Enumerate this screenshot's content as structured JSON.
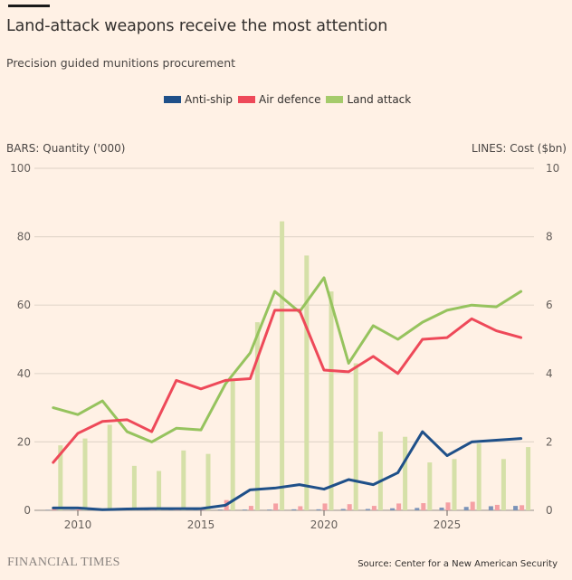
{
  "header": {
    "title": "Land-attack weapons receive the most attention",
    "subtitle": "Precision guided munitions procurement"
  },
  "legend": [
    {
      "label": "Anti-ship",
      "color": "#1f5089"
    },
    {
      "label": "Air defence",
      "color": "#ee4959"
    },
    {
      "label": "Land attack",
      "color": "#a5cb6b"
    }
  ],
  "footer": {
    "brand": "FINANCIAL TIMES",
    "source": "Source: Center for a New American Security"
  },
  "chart_data": {
    "type": "bar+line",
    "title": "Land-attack weapons receive the most attention",
    "subtitle": "Precision guided munitions procurement",
    "left_axis": {
      "label": "BARS: Quantity ('000)",
      "range": [
        0,
        100
      ],
      "ticks": [
        "0",
        "20",
        "40",
        "60",
        "80",
        "100"
      ]
    },
    "right_axis": {
      "label": "LINES: Cost ($bn)",
      "range": [
        0,
        10
      ],
      "ticks": [
        "0",
        "2",
        "4",
        "6",
        "8",
        "10"
      ]
    },
    "x_ticks": [
      "2010",
      "2015",
      "2020",
      "2025"
    ],
    "x": [
      2009,
      2010,
      2011,
      2012,
      2013,
      2014,
      2015,
      2016,
      2017,
      2018,
      2019,
      2020,
      2021,
      2022,
      2023,
      2024,
      2025,
      2026,
      2027,
      2028
    ],
    "grid": true,
    "legend_position": "top-center",
    "bars": [
      {
        "name": "Anti-ship",
        "color": "#7b93b8",
        "values": [
          0.1,
          0.1,
          0.1,
          0.1,
          0.1,
          0.1,
          0.1,
          0.2,
          0.2,
          0.2,
          0.3,
          0.3,
          0.4,
          0.4,
          0.6,
          0.7,
          0.8,
          1.0,
          1.2,
          1.3
        ]
      },
      {
        "name": "Air defence",
        "color": "#f5a0a4",
        "values": [
          0.5,
          0.3,
          0.3,
          0.3,
          0.3,
          0.3,
          0.5,
          3.0,
          1.3,
          2.0,
          1.2,
          2.0,
          1.8,
          1.3,
          2.0,
          2.1,
          2.3,
          2.5,
          1.6,
          1.5
        ]
      },
      {
        "name": "Land attack",
        "color": "#d5e0a8",
        "values": [
          19,
          21,
          25,
          13,
          11.5,
          17.5,
          16.5,
          38,
          55,
          84.5,
          74.5,
          64,
          43,
          23,
          21.5,
          14,
          15,
          19.5,
          15,
          18.5
        ]
      }
    ],
    "lines": [
      {
        "name": "Anti-ship",
        "color": "#1f5089",
        "values": [
          0.07,
          0.07,
          0.02,
          0.04,
          0.05,
          0.05,
          0.05,
          0.15,
          0.6,
          0.65,
          0.75,
          0.62,
          0.9,
          0.75,
          1.1,
          2.3,
          1.6,
          2.0,
          2.05,
          2.1
        ]
      },
      {
        "name": "Air defence",
        "color": "#ee4959",
        "values": [
          1.4,
          2.25,
          2.6,
          2.65,
          2.3,
          3.8,
          3.55,
          3.8,
          3.85,
          5.85,
          5.85,
          4.1,
          4.05,
          4.5,
          4.0,
          5.0,
          5.05,
          5.6,
          5.25,
          5.05
        ]
      },
      {
        "name": "Land attack",
        "color": "#96c35e",
        "values": [
          3.0,
          2.8,
          3.2,
          2.3,
          2.0,
          2.4,
          2.35,
          3.7,
          4.6,
          6.4,
          5.8,
          6.8,
          4.3,
          5.4,
          5.0,
          5.5,
          5.85,
          6.0,
          5.95,
          6.4
        ]
      }
    ]
  }
}
